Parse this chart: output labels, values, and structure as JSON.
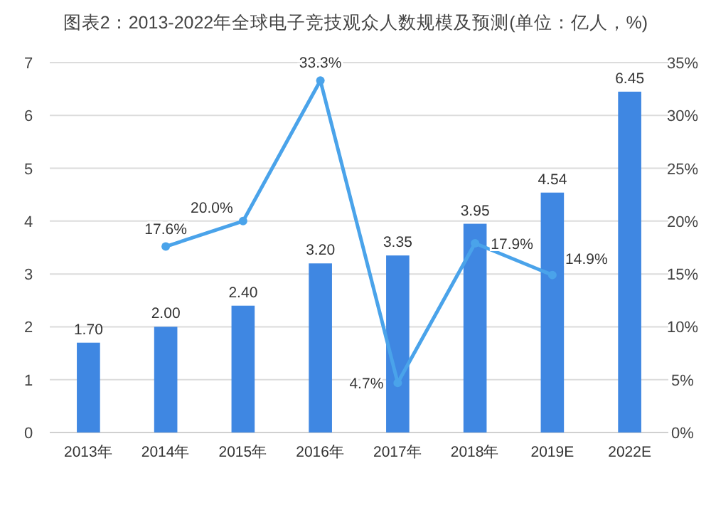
{
  "chart_data": {
    "type": "bar",
    "title": "图表2：2013-2022年全球电子竞技观众人数规模及预测(单位：亿人，%)",
    "categories": [
      "2013年",
      "2014年",
      "2015年",
      "2016年",
      "2017年",
      "2018年",
      "2019E",
      "2022E"
    ],
    "series": [
      {
        "color": "#3f87e2",
        "values": [
          1.7,
          2.0,
          2.4,
          3.2,
          3.35,
          3.95,
          4.54,
          6.45
        ],
        "value_labels": [
          "1.70",
          "2.00",
          "2.40",
          "3.20",
          "3.35",
          "3.95",
          "4.54",
          "6.45"
        ]
      },
      {
        "type": "line",
        "axis": "y2",
        "color": "#4aa3ea",
        "marker": "circle",
        "values": [
          null,
          17.6,
          20.0,
          33.3,
          4.7,
          17.9,
          14.9,
          null
        ],
        "value_labels": [
          null,
          "17.6%",
          "20.0%",
          "33.3%",
          "4.7%",
          "17.9%",
          "14.9%",
          null
        ]
      }
    ],
    "ylim": [
      0,
      7
    ],
    "yticks": [
      0,
      1,
      2,
      3,
      4,
      5,
      6,
      7
    ],
    "y2lim": [
      0,
      35
    ],
    "y2ticks": [
      {
        "value": 0,
        "label": "0%"
      },
      {
        "value": 5,
        "label": "5%"
      },
      {
        "value": 10,
        "label": "10%"
      },
      {
        "value": 15,
        "label": "15%"
      },
      {
        "value": 20,
        "label": "20%"
      },
      {
        "value": 25,
        "label": "25%"
      },
      {
        "value": 30,
        "label": "30%"
      },
      {
        "value": 35,
        "label": "35%"
      }
    ],
    "grid": "y"
  }
}
